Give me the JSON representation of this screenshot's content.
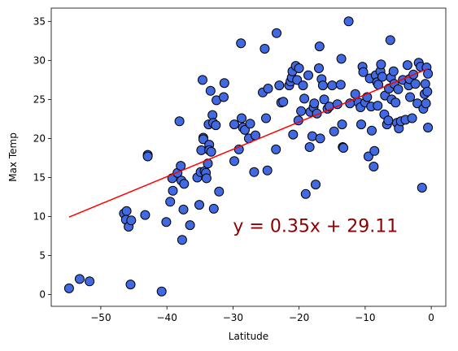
{
  "chart_data": {
    "type": "scatter",
    "xlabel": "Latitude",
    "ylabel": "Max Temp",
    "xlim": [
      -57.5,
      2.2
    ],
    "ylim": [
      -1.5,
      36.7
    ],
    "x_ticks": [
      -50,
      -40,
      -30,
      -20,
      -10,
      0
    ],
    "y_ticks": [
      0,
      5,
      10,
      15,
      20,
      25,
      30,
      35
    ],
    "grid": false,
    "marker_fill": "#4169e1",
    "marker_edge": "#000000",
    "regression": {
      "slope": 0.35,
      "intercept": 29.11,
      "x_range": [
        -54.8,
        -0.5
      ],
      "color": "#ff0000"
    },
    "annotation": {
      "text": "y = 0.35x + 29.11",
      "x": -30,
      "y": 8,
      "color": "#8b0000"
    },
    "points": [
      [
        -54.8,
        0.8
      ],
      [
        -53.2,
        2.0
      ],
      [
        -51.7,
        1.7
      ],
      [
        -45.5,
        1.3
      ],
      [
        -40.8,
        0.4
      ],
      [
        -46.5,
        10.4
      ],
      [
        -46.1,
        10.7
      ],
      [
        -46.2,
        9.6
      ],
      [
        -45.8,
        8.7
      ],
      [
        -45.4,
        9.5
      ],
      [
        -43.3,
        10.2
      ],
      [
        -42.9,
        17.9
      ],
      [
        -42.9,
        17.7
      ],
      [
        -40.1,
        9.3
      ],
      [
        -39.5,
        11.9
      ],
      [
        -39.2,
        14.9
      ],
      [
        -39.1,
        13.3
      ],
      [
        -38.4,
        15.6
      ],
      [
        -38.1,
        22.2
      ],
      [
        -37.9,
        16.5
      ],
      [
        -37.8,
        14.6
      ],
      [
        -37.7,
        7.0
      ],
      [
        -37.5,
        10.9
      ],
      [
        -37.4,
        14.2
      ],
      [
        -36.5,
        8.9
      ],
      [
        -35.4,
        15.0
      ],
      [
        -35.1,
        11.5
      ],
      [
        -34.9,
        15.7
      ],
      [
        -34.8,
        18.5
      ],
      [
        -34.6,
        27.5
      ],
      [
        -34.5,
        20.1
      ],
      [
        -34.5,
        19.9
      ],
      [
        -34.3,
        15.8
      ],
      [
        -34.1,
        15.6
      ],
      [
        -34.0,
        14.9
      ],
      [
        -33.8,
        16.8
      ],
      [
        -33.7,
        21.8
      ],
      [
        -33.6,
        19.2
      ],
      [
        -33.6,
        18.5
      ],
      [
        -33.4,
        26.1
      ],
      [
        -33.3,
        18.3
      ],
      [
        -33.1,
        23.0
      ],
      [
        -33.0,
        22.0
      ],
      [
        -32.9,
        11.0
      ],
      [
        -32.6,
        21.7
      ],
      [
        -32.5,
        24.9
      ],
      [
        -32.1,
        13.2
      ],
      [
        -31.4,
        25.3
      ],
      [
        -31.3,
        27.1
      ],
      [
        -29.8,
        17.1
      ],
      [
        -29.8,
        21.8
      ],
      [
        -29.1,
        18.6
      ],
      [
        -28.8,
        32.2
      ],
      [
        -28.7,
        22.6
      ],
      [
        -28.5,
        21.4
      ],
      [
        -28.2,
        21.1
      ],
      [
        -27.6,
        20.0
      ],
      [
        -27.4,
        21.9
      ],
      [
        -26.8,
        15.7
      ],
      [
        -26.6,
        20.4
      ],
      [
        -25.5,
        25.9
      ],
      [
        -25.2,
        31.5
      ],
      [
        -25.0,
        22.6
      ],
      [
        -24.8,
        15.9
      ],
      [
        -24.7,
        26.4
      ],
      [
        -23.5,
        18.6
      ],
      [
        -23.4,
        33.5
      ],
      [
        -23.0,
        26.8
      ],
      [
        -22.7,
        24.6
      ],
      [
        -22.4,
        24.7
      ],
      [
        -21.5,
        26.8
      ],
      [
        -21.3,
        27.3
      ],
      [
        -21.1,
        27.8
      ],
      [
        -21.0,
        28.6
      ],
      [
        -20.9,
        20.5
      ],
      [
        -20.5,
        29.3
      ],
      [
        -20.3,
        27.5
      ],
      [
        -20.1,
        22.3
      ],
      [
        -20.0,
        29.0
      ],
      [
        -19.7,
        23.5
      ],
      [
        -19.4,
        26.8
      ],
      [
        -19.2,
        25.1
      ],
      [
        -19.0,
        12.9
      ],
      [
        -18.6,
        28.1
      ],
      [
        -18.4,
        18.9
      ],
      [
        -18.3,
        23.4
      ],
      [
        -18.0,
        20.3
      ],
      [
        -17.8,
        24.0
      ],
      [
        -17.7,
        24.5
      ],
      [
        -17.5,
        14.1
      ],
      [
        -17.3,
        23.2
      ],
      [
        -17.0,
        29.0
      ],
      [
        -16.9,
        31.8
      ],
      [
        -16.8,
        20.0
      ],
      [
        -16.6,
        27.6
      ],
      [
        -16.4,
        26.8
      ],
      [
        -16.2,
        25.0
      ],
      [
        -15.7,
        23.8
      ],
      [
        -15.4,
        24.1
      ],
      [
        -15.0,
        26.8
      ],
      [
        -14.7,
        20.9
      ],
      [
        -14.2,
        24.4
      ],
      [
        -13.7,
        26.9
      ],
      [
        -13.6,
        30.2
      ],
      [
        -13.5,
        21.8
      ],
      [
        -13.4,
        18.9
      ],
      [
        -13.3,
        18.8
      ],
      [
        -12.5,
        35.0
      ],
      [
        -12.3,
        24.5
      ],
      [
        -11.5,
        25.7
      ],
      [
        -11.0,
        24.6
      ],
      [
        -10.7,
        24.0
      ],
      [
        -10.6,
        21.8
      ],
      [
        -10.4,
        29.2
      ],
      [
        -10.3,
        28.5
      ],
      [
        -10.0,
        24.6
      ],
      [
        -9.7,
        25.3
      ],
      [
        -9.5,
        17.7
      ],
      [
        -9.3,
        27.7
      ],
      [
        -9.1,
        24.1
      ],
      [
        -9.0,
        21.0
      ],
      [
        -8.7,
        16.4
      ],
      [
        -8.6,
        18.4
      ],
      [
        -8.4,
        28.1
      ],
      [
        -8.2,
        27.2
      ],
      [
        -8.1,
        24.2
      ],
      [
        -8.0,
        26.9
      ],
      [
        -7.7,
        28.6
      ],
      [
        -7.6,
        29.5
      ],
      [
        -7.4,
        27.9
      ],
      [
        -7.1,
        23.1
      ],
      [
        -7.0,
        25.5
      ],
      [
        -6.7,
        21.8
      ],
      [
        -6.5,
        22.3
      ],
      [
        -6.4,
        26.4
      ],
      [
        -6.2,
        32.6
      ],
      [
        -6.1,
        27.8
      ],
      [
        -6.0,
        25.0
      ],
      [
        -5.7,
        28.6
      ],
      [
        -5.6,
        27.0
      ],
      [
        -5.4,
        24.6
      ],
      [
        -5.2,
        22.0
      ],
      [
        -5.0,
        26.3
      ],
      [
        -4.9,
        21.3
      ],
      [
        -4.6,
        22.2
      ],
      [
        -4.3,
        27.5
      ],
      [
        -3.9,
        22.4
      ],
      [
        -3.6,
        29.4
      ],
      [
        -3.4,
        26.8
      ],
      [
        -3.3,
        27.6
      ],
      [
        -3.2,
        25.3
      ],
      [
        -2.9,
        22.6
      ],
      [
        -2.7,
        28.2
      ],
      [
        -2.4,
        27.0
      ],
      [
        -2.1,
        24.5
      ],
      [
        -1.9,
        29.7
      ],
      [
        -1.6,
        29.2
      ],
      [
        -1.4,
        13.7
      ],
      [
        -1.2,
        23.8
      ],
      [
        -1.0,
        25.7
      ],
      [
        -0.9,
        27.0
      ],
      [
        -0.8,
        24.5
      ],
      [
        -0.7,
        29.1
      ],
      [
        -0.6,
        26.0
      ],
      [
        -0.5,
        21.4
      ],
      [
        -0.5,
        28.3
      ]
    ]
  }
}
